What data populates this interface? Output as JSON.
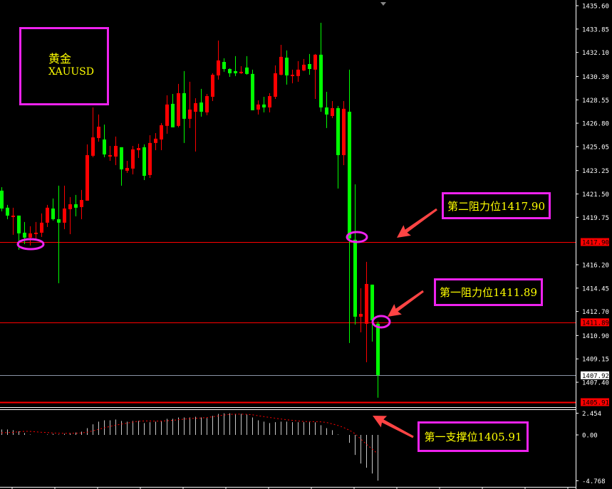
{
  "chart_data": {
    "type": "candlestick",
    "symbol": {
      "name_cn": "黄金",
      "ticker": "XAUUSD"
    },
    "colors": {
      "up": "#ff0000",
      "down": "#00ff00",
      "background": "#000000",
      "annotation_box": "#ee22ee",
      "annotation_text": "#ffff00",
      "arrow": "#ff4444",
      "macd_bar": "#c8c8c8",
      "macd_signal": "#ff0000"
    },
    "price_axis": {
      "range": [
        1405.6,
        1435.6
      ],
      "ticks": [
        "1435.60",
        "1433.85",
        "1432.10",
        "1430.30",
        "1428.55",
        "1426.80",
        "1425.05",
        "1423.25",
        "1421.50",
        "1419.75",
        "1416.20",
        "1414.45",
        "1412.70",
        "1410.90",
        "1409.15",
        "1407.40"
      ]
    },
    "levels": [
      {
        "price": 1417.9,
        "label": "1417.90",
        "color": "#ff0000",
        "style": "thin"
      },
      {
        "price": 1411.89,
        "label": "1411.89",
        "color": "#ff0000",
        "style": "line"
      },
      {
        "price": 1407.92,
        "label": "1407.92",
        "color": "#8a94a6",
        "style": "bid"
      },
      {
        "price": 1405.91,
        "label": "1405.91",
        "color": "#ff0000",
        "style": "thick"
      }
    ],
    "annotations": [
      {
        "text": "第二阻力位1417.90",
        "target_price": 1417.9
      },
      {
        "text": "第一阻力位1411.89",
        "target_price": 1411.89
      },
      {
        "text": "第一支撑位1405.91",
        "target_price": 1405.91
      }
    ],
    "ohlc": [
      [
        1421.75,
        1422.01,
        1420.2,
        1420.41
      ],
      [
        1420.47,
        1420.68,
        1419.61,
        1419.88
      ],
      [
        1419.88,
        1420.47,
        1418.44,
        1419.88
      ],
      [
        1419.88,
        1419.88,
        1417.32,
        1418.55
      ],
      [
        1418.6,
        1419.4,
        1417.75,
        1418.23
      ],
      [
        1418.23,
        1419.08,
        1417.64,
        1418.55
      ],
      [
        1418.6,
        1419.4,
        1418.17,
        1418.6
      ],
      [
        1418.6,
        1420.04,
        1418.28,
        1419.35
      ],
      [
        1419.35,
        1420.68,
        1419.03,
        1420.47
      ],
      [
        1420.41,
        1421.16,
        1419.51,
        1419.61
      ],
      [
        1419.61,
        1422.12,
        1414.82,
        1419.35
      ],
      [
        1419.35,
        1422.12,
        1418.87,
        1420.41
      ],
      [
        1420.36,
        1421.27,
        1418.49,
        1420.73
      ],
      [
        1420.73,
        1421.43,
        1419.83,
        1420.47
      ],
      [
        1420.52,
        1421.8,
        1419.61,
        1421.05
      ],
      [
        1421.0,
        1425.21,
        1421.0,
        1424.41
      ],
      [
        1424.36,
        1427.98,
        1424.25,
        1425.74
      ],
      [
        1425.69,
        1427.45,
        1425.42,
        1426.54
      ],
      [
        1425.58,
        1426.7,
        1424.25,
        1424.46
      ],
      [
        1424.41,
        1425.1,
        1423.98,
        1424.41
      ],
      [
        1424.3,
        1425.8,
        1423.66,
        1425.1
      ],
      [
        1425.0,
        1425.0,
        1422.12,
        1423.34
      ],
      [
        1423.24,
        1423.98,
        1423.08,
        1423.45
      ],
      [
        1423.4,
        1425.1,
        1422.97,
        1424.84
      ],
      [
        1424.78,
        1425.26,
        1424.2,
        1424.94
      ],
      [
        1425.0,
        1425.21,
        1422.54,
        1422.86
      ],
      [
        1422.92,
        1425.9,
        1422.7,
        1425.32
      ],
      [
        1425.32,
        1426.06,
        1424.78,
        1425.64
      ],
      [
        1425.58,
        1426.81,
        1424.78,
        1426.65
      ],
      [
        1426.6,
        1428.89,
        1426.01,
        1428.2
      ],
      [
        1428.25,
        1428.99,
        1426.49,
        1426.49
      ],
      [
        1426.6,
        1429.74,
        1426.49,
        1429.05
      ],
      [
        1429.05,
        1430.7,
        1425.32,
        1427.13
      ],
      [
        1427.13,
        1429.9,
        1426.44,
        1427.82
      ],
      [
        1427.66,
        1428.67,
        1424.68,
        1428.3
      ],
      [
        1428.35,
        1429.37,
        1427.29,
        1427.66
      ],
      [
        1427.61,
        1428.99,
        1427.4,
        1428.83
      ],
      [
        1428.78,
        1430.54,
        1428.46,
        1430.43
      ],
      [
        1430.38,
        1432.99,
        1430.06,
        1431.5
      ],
      [
        1431.39,
        1431.66,
        1430.65,
        1430.86
      ],
      [
        1430.86,
        1430.91,
        1430.27,
        1430.54
      ],
      [
        1430.7,
        1431.82,
        1430.33,
        1430.54
      ],
      [
        1430.65,
        1431.07,
        1430.49,
        1430.65
      ],
      [
        1430.97,
        1431.82,
        1430.43,
        1430.49
      ],
      [
        1430.49,
        1430.81,
        1427.77,
        1427.77
      ],
      [
        1427.82,
        1428.51,
        1427.45,
        1428.2
      ],
      [
        1428.2,
        1428.78,
        1427.61,
        1427.98
      ],
      [
        1427.98,
        1429.05,
        1427.61,
        1428.83
      ],
      [
        1428.78,
        1431.13,
        1428.62,
        1430.54
      ],
      [
        1430.43,
        1432.67,
        1430.38,
        1431.77
      ],
      [
        1431.71,
        1432.25,
        1429.69,
        1430.38
      ],
      [
        1430.43,
        1430.81,
        1429.79,
        1430.43
      ],
      [
        1430.33,
        1431.45,
        1429.9,
        1430.81
      ],
      [
        1430.75,
        1431.61,
        1430.7,
        1431.18
      ],
      [
        1431.23,
        1431.98,
        1430.43,
        1430.86
      ],
      [
        1430.81,
        1431.98,
        1428.62,
        1431.93
      ],
      [
        1431.93,
        1434.32,
        1427.66,
        1427.98
      ],
      [
        1427.98,
        1429.15,
        1426.44,
        1427.45
      ],
      [
        1427.34,
        1428.46,
        1427.18,
        1427.93
      ],
      [
        1427.93,
        1428.09,
        1421.91,
        1424.41
      ],
      [
        1424.41,
        1428.46,
        1423.66,
        1427.88
      ],
      [
        1427.66,
        1430.81,
        1410.34,
        1418.17
      ],
      [
        1418.07,
        1422.22,
        1411.72,
        1412.31
      ],
      [
        1412.31,
        1414.44,
        1411.14,
        1412.52
      ],
      [
        1411.78,
        1416.42,
        1408.9,
        1414.76
      ],
      [
        1414.71,
        1414.71,
        1410.45,
        1412.04
      ],
      [
        1411.78,
        1411.94,
        1406.24,
        1407.94
      ]
    ],
    "macd": {
      "range": [
        -4.768,
        2.454
      ],
      "ticks": [
        "2.454",
        "0.00",
        "-4.768"
      ],
      "histogram": [
        0.61,
        0.61,
        0.53,
        0.4,
        0.21,
        0.05,
        0,
        0,
        0.05,
        0.13,
        0.05,
        0.13,
        0.19,
        0.27,
        0.37,
        0.77,
        1.2,
        1.5,
        1.65,
        1.65,
        1.74,
        1.58,
        1.5,
        1.58,
        1.58,
        1.34,
        1.44,
        1.5,
        1.58,
        1.82,
        1.82,
        1.98,
        1.98,
        1.98,
        2.06,
        1.98,
        1.92,
        2.16,
        2.38,
        2.45,
        2.45,
        2.38,
        2.38,
        2.3,
        1.98,
        1.65,
        1.5,
        1.34,
        1.44,
        1.5,
        1.5,
        1.44,
        1.44,
        1.44,
        1.44,
        1.42,
        1.1,
        0.77,
        0.53,
        0.05,
        0,
        -0.82,
        -2.08,
        -2.98,
        -3.42,
        -4.02,
        -4.76
      ],
      "signal": [
        0.24,
        0.26,
        0.29,
        0.35,
        0.4,
        0.4,
        0.35,
        0.3,
        0.27,
        0.22,
        0.19,
        0.18,
        0.18,
        0.19,
        0.22,
        0.3,
        0.45,
        0.62,
        0.8,
        0.95,
        1.1,
        1.22,
        1.32,
        1.45,
        1.55,
        1.58,
        1.58,
        1.56,
        1.56,
        1.6,
        1.65,
        1.72,
        1.78,
        1.85,
        1.88,
        1.92,
        1.96,
        2.05,
        2.15,
        2.25,
        2.32,
        2.35,
        2.35,
        2.33,
        2.28,
        2.18,
        2.08,
        1.98,
        1.9,
        1.8,
        1.72,
        1.65,
        1.58,
        1.52,
        1.5,
        1.5,
        1.48,
        1.42,
        1.25,
        1.08,
        0.85,
        0.55,
        0.15,
        -0.4,
        -0.95,
        -1.45,
        -1.95
      ]
    }
  }
}
